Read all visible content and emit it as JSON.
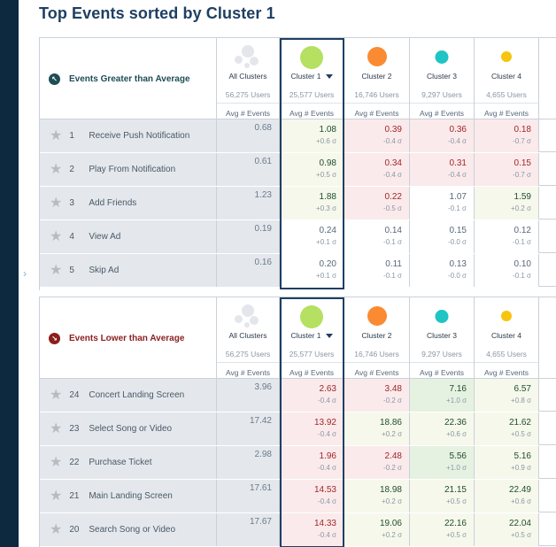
{
  "title": "Top Events sorted by Cluster 1",
  "colors": {
    "cluster1": "#b5e061",
    "cluster2": "#fa8b33",
    "cluster3": "#1fc4c4",
    "cluster4": "#f7c40f",
    "neutral_dot": "#e3e6ea"
  },
  "columns": [
    {
      "name": "All Clusters",
      "users": "56,275 Users",
      "avg": "Avg # Events"
    },
    {
      "name": "Cluster 1",
      "users": "25,577 Users",
      "avg": "Avg # Events"
    },
    {
      "name": "Cluster 2",
      "users": "16,746 Users",
      "avg": "Avg # Events"
    },
    {
      "name": "Cluster 3",
      "users": "9,297 Users",
      "avg": "Avg # Events"
    },
    {
      "name": "Cluster 4",
      "users": "4,655 Users",
      "avg": "Avg # Events"
    }
  ],
  "greater": {
    "label": "Events Greater than Average",
    "icon": "arrow-up-left-icon",
    "rows": [
      {
        "num": "1",
        "name": "Receive Push Notification",
        "all": "0.68",
        "cells": [
          {
            "v": "1.08",
            "s": "+0.6 σ",
            "t": "pos"
          },
          {
            "v": "0.39",
            "s": "-0.4 σ",
            "t": "neg"
          },
          {
            "v": "0.36",
            "s": "-0.4 σ",
            "t": "neg"
          },
          {
            "v": "0.18",
            "s": "-0.7 σ",
            "t": "neg"
          }
        ]
      },
      {
        "num": "2",
        "name": "Play From Notification",
        "all": "0.61",
        "cells": [
          {
            "v": "0.98",
            "s": "+0.5 σ",
            "t": "pos"
          },
          {
            "v": "0.34",
            "s": "-0.4 σ",
            "t": "neg"
          },
          {
            "v": "0.31",
            "s": "-0.4 σ",
            "t": "neg"
          },
          {
            "v": "0.15",
            "s": "-0.7 σ",
            "t": "neg"
          }
        ]
      },
      {
        "num": "3",
        "name": "Add Friends",
        "all": "1.23",
        "cells": [
          {
            "v": "1.88",
            "s": "+0.3 σ",
            "t": "pos"
          },
          {
            "v": "0.22",
            "s": "-0.5 σ",
            "t": "neg"
          },
          {
            "v": "1.07",
            "s": "-0.1 σ",
            "t": "neu"
          },
          {
            "v": "1.59",
            "s": "+0.2 σ",
            "t": "pos"
          }
        ]
      },
      {
        "num": "4",
        "name": "View Ad",
        "all": "0.19",
        "cells": [
          {
            "v": "0.24",
            "s": "+0.1 σ",
            "t": "neu"
          },
          {
            "v": "0.14",
            "s": "-0.1 σ",
            "t": "neu"
          },
          {
            "v": "0.15",
            "s": "-0.0 σ",
            "t": "neu"
          },
          {
            "v": "0.12",
            "s": "-0.1 σ",
            "t": "neu"
          }
        ]
      },
      {
        "num": "5",
        "name": "Skip Ad",
        "all": "0.16",
        "cells": [
          {
            "v": "0.20",
            "s": "+0.1 σ",
            "t": "neu"
          },
          {
            "v": "0.11",
            "s": "-0.1 σ",
            "t": "neu"
          },
          {
            "v": "0.13",
            "s": "-0.0 σ",
            "t": "neu"
          },
          {
            "v": "0.10",
            "s": "-0.1 σ",
            "t": "neu"
          }
        ]
      }
    ]
  },
  "lower": {
    "label": "Events Lower than Average",
    "icon": "arrow-down-right-icon",
    "rows": [
      {
        "num": "24",
        "name": "Concert Landing Screen",
        "all": "3.96",
        "cells": [
          {
            "v": "2.63",
            "s": "-0.4 σ",
            "t": "neg"
          },
          {
            "v": "3.48",
            "s": "-0.2 σ",
            "t": "neg"
          },
          {
            "v": "7.16",
            "s": "+1.0 σ",
            "t": "strongpos"
          },
          {
            "v": "6.57",
            "s": "+0.8 σ",
            "t": "pos"
          }
        ]
      },
      {
        "num": "23",
        "name": "Select Song or Video",
        "all": "17.42",
        "cells": [
          {
            "v": "13.92",
            "s": "-0.4 σ",
            "t": "neg"
          },
          {
            "v": "18.86",
            "s": "+0.2 σ",
            "t": "pos"
          },
          {
            "v": "22.36",
            "s": "+0.6 σ",
            "t": "pos"
          },
          {
            "v": "21.62",
            "s": "+0.5 σ",
            "t": "pos"
          }
        ]
      },
      {
        "num": "22",
        "name": "Purchase Ticket",
        "all": "2.98",
        "cells": [
          {
            "v": "1.96",
            "s": "-0.4 σ",
            "t": "neg"
          },
          {
            "v": "2.48",
            "s": "-0.2 σ",
            "t": "neg"
          },
          {
            "v": "5.56",
            "s": "+1.0 σ",
            "t": "strongpos"
          },
          {
            "v": "5.16",
            "s": "+0.9 σ",
            "t": "pos"
          }
        ]
      },
      {
        "num": "21",
        "name": "Main Landing Screen",
        "all": "17.61",
        "cells": [
          {
            "v": "14.53",
            "s": "-0.4 σ",
            "t": "neg"
          },
          {
            "v": "18.98",
            "s": "+0.2 σ",
            "t": "pos"
          },
          {
            "v": "21.15",
            "s": "+0.5 σ",
            "t": "pos"
          },
          {
            "v": "22.49",
            "s": "+0.6 σ",
            "t": "pos"
          }
        ]
      },
      {
        "num": "20",
        "name": "Search Song or Video",
        "all": "17.67",
        "cells": [
          {
            "v": "14.33",
            "s": "-0.4 σ",
            "t": "neg"
          },
          {
            "v": "19.06",
            "s": "+0.2 σ",
            "t": "pos"
          },
          {
            "v": "22.16",
            "s": "+0.5 σ",
            "t": "pos"
          },
          {
            "v": "22.04",
            "s": "+0.5 σ",
            "t": "pos"
          }
        ]
      }
    ]
  }
}
